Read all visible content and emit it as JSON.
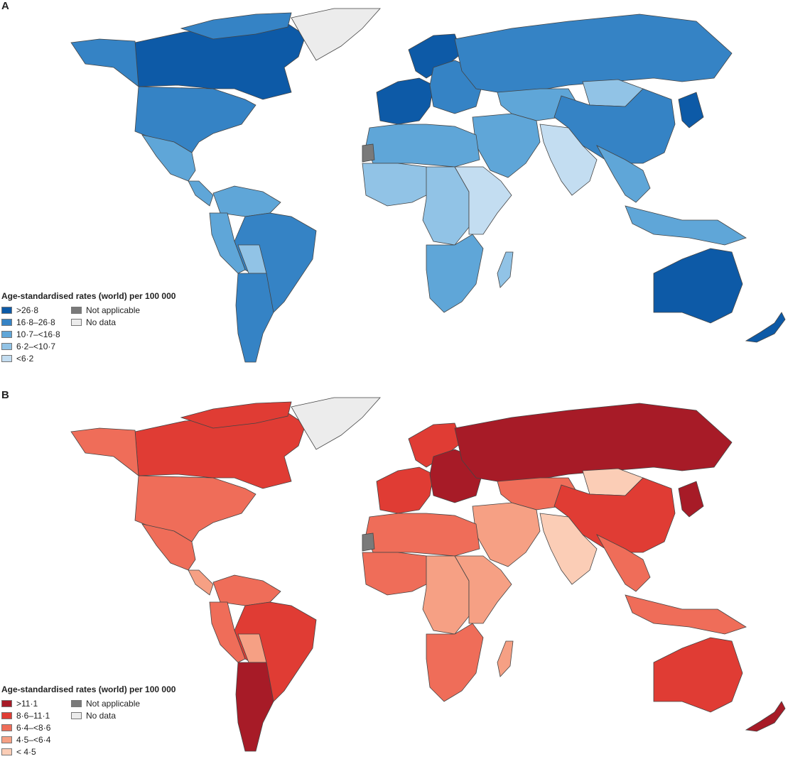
{
  "panels": {
    "a": {
      "letter": "A",
      "legend_title": "Age-standardised rates (world) per 100 000",
      "categories": [
        {
          "label": ">26·8",
          "color": "#0d5aa7"
        },
        {
          "label": "16·8–26·8",
          "color": "#3583c5"
        },
        {
          "label": "10·7–<16·8",
          "color": "#5fa6d8"
        },
        {
          "label": "6·2–<10·7",
          "color": "#91c3e6"
        },
        {
          "label": "<6·2",
          "color": "#c3ddf1"
        }
      ],
      "extra": [
        {
          "label": "Not applicable",
          "color": "#7a7a7a"
        },
        {
          "label": "No data",
          "color": "#ececec"
        }
      ]
    },
    "b": {
      "letter": "B",
      "legend_title": "Age-standardised rates (world) per 100 000",
      "categories": [
        {
          "label": ">11·1",
          "color": "#a71b27"
        },
        {
          "label": "8·6–11·1",
          "color": "#e03c34"
        },
        {
          "label": "6·4–<8·6",
          "color": "#ef6d59"
        },
        {
          "label": "4·5–<6·4",
          "color": "#f6a084"
        },
        {
          "label": "< 4·5",
          "color": "#fbcdb6"
        }
      ],
      "extra": [
        {
          "label": "Not applicable",
          "color": "#7a7a7a"
        },
        {
          "label": "No data",
          "color": "#ececec"
        }
      ]
    }
  },
  "regions": [
    {
      "name": "canada",
      "a": 0,
      "b": 1
    },
    {
      "name": "alaska",
      "a": 1,
      "b": 2
    },
    {
      "name": "usa",
      "a": 1,
      "b": 2
    },
    {
      "name": "mexico",
      "a": 2,
      "b": 2
    },
    {
      "name": "central-america",
      "a": 2,
      "b": 3
    },
    {
      "name": "greenland",
      "a": "nd",
      "b": "nd"
    },
    {
      "name": "arctic-islands",
      "a": 1,
      "b": 1
    },
    {
      "name": "colombia-venezuela",
      "a": 2,
      "b": 2
    },
    {
      "name": "brazil",
      "a": 1,
      "b": 1
    },
    {
      "name": "peru",
      "a": 2,
      "b": 2
    },
    {
      "name": "bolivia",
      "a": 3,
      "b": 3
    },
    {
      "name": "argentina-chile",
      "a": 1,
      "b": 0
    },
    {
      "name": "western-europe",
      "a": 0,
      "b": 1
    },
    {
      "name": "scandinavia",
      "a": 0,
      "b": 1
    },
    {
      "name": "eastern-europe",
      "a": 1,
      "b": 0
    },
    {
      "name": "russia",
      "a": 1,
      "b": 0
    },
    {
      "name": "central-asia",
      "a": 2,
      "b": 2
    },
    {
      "name": "mongolia",
      "a": 3,
      "b": 4
    },
    {
      "name": "china",
      "a": 1,
      "b": 1
    },
    {
      "name": "japan",
      "a": 0,
      "b": 0
    },
    {
      "name": "middle-east",
      "a": 2,
      "b": 3
    },
    {
      "name": "india",
      "a": 4,
      "b": 4
    },
    {
      "name": "southeast-asia",
      "a": 2,
      "b": 2
    },
    {
      "name": "indonesia",
      "a": 2,
      "b": 2
    },
    {
      "name": "north-africa",
      "a": 2,
      "b": 2
    },
    {
      "name": "west-africa",
      "a": 3,
      "b": 2
    },
    {
      "name": "central-africa",
      "a": 3,
      "b": 3
    },
    {
      "name": "east-africa",
      "a": 4,
      "b": 3
    },
    {
      "name": "southern-africa",
      "a": 2,
      "b": 2
    },
    {
      "name": "madagascar",
      "a": 3,
      "b": 3
    },
    {
      "name": "australia",
      "a": 0,
      "b": 1
    },
    {
      "name": "new-zealand",
      "a": 0,
      "b": 0
    },
    {
      "name": "western-sahara",
      "a": "na",
      "b": "na"
    }
  ]
}
